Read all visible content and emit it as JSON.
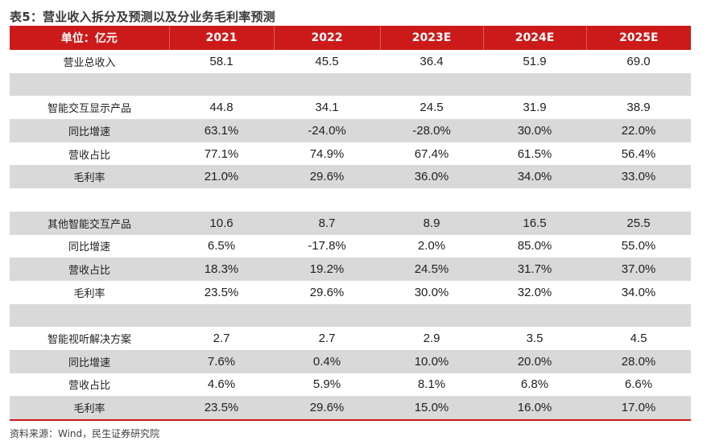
{
  "title": "表5：营业收入拆分及预测以及分业务毛利率预测",
  "header": [
    "单位：亿元",
    "2021",
    "2022",
    "2023E",
    "2024E",
    "2025E"
  ],
  "rows": [
    {
      "label": "营业总收入",
      "values": [
        "58.1",
        "45.5",
        "36.4",
        "51.9",
        "69.0"
      ]
    },
    {
      "label": "",
      "values": [
        "",
        "",
        "",
        "",
        ""
      ]
    },
    {
      "label": "智能交互显示产品",
      "values": [
        "44.8",
        "34.1",
        "24.5",
        "31.9",
        "38.9"
      ]
    },
    {
      "label": "同比增速",
      "values": [
        "63.1%",
        "-24.0%",
        "-28.0%",
        "30.0%",
        "22.0%"
      ]
    },
    {
      "label": "营收占比",
      "values": [
        "77.1%",
        "74.9%",
        "67.4%",
        "61.5%",
        "56.4%"
      ]
    },
    {
      "label": "毛利率",
      "values": [
        "21.0%",
        "29.6%",
        "36.0%",
        "34.0%",
        "33.0%"
      ]
    },
    {
      "label": "",
      "values": [
        "",
        "",
        "",
        "",
        ""
      ]
    },
    {
      "label": "其他智能交互产品",
      "values": [
        "10.6",
        "8.7",
        "8.9",
        "16.5",
        "25.5"
      ]
    },
    {
      "label": "同比增速",
      "values": [
        "6.5%",
        "-17.8%",
        "2.0%",
        "85.0%",
        "55.0%"
      ]
    },
    {
      "label": "营收占比",
      "values": [
        "18.3%",
        "19.2%",
        "24.5%",
        "31.7%",
        "37.0%"
      ]
    },
    {
      "label": "毛利率",
      "values": [
        "23.5%",
        "29.6%",
        "30.0%",
        "32.0%",
        "34.0%"
      ]
    },
    {
      "label": "",
      "values": [
        "",
        "",
        "",
        "",
        ""
      ]
    },
    {
      "label": "智能视听解决方案",
      "values": [
        "2.7",
        "2.7",
        "2.9",
        "3.5",
        "4.5"
      ]
    },
    {
      "label": "同比增速",
      "values": [
        "7.6%",
        "0.4%",
        "10.0%",
        "20.0%",
        "28.0%"
      ]
    },
    {
      "label": "营收占比",
      "values": [
        "4.6%",
        "5.9%",
        "8.1%",
        "6.8%",
        "6.6%"
      ]
    },
    {
      "label": "毛利率",
      "values": [
        "23.5%",
        "29.6%",
        "15.0%",
        "16.0%",
        "17.0%"
      ]
    }
  ],
  "source": "资料来源：Wind，民生证券研究院"
}
